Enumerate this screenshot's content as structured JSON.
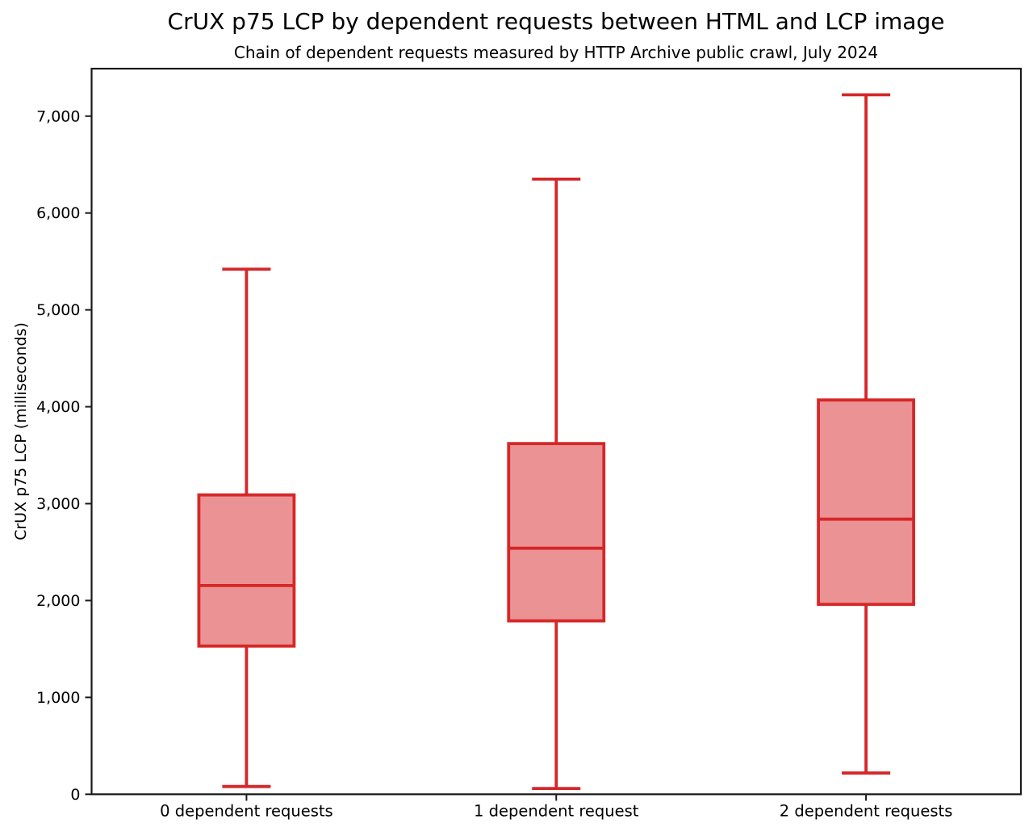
{
  "title": "CrUX p75 LCP by dependent requests between HTML and LCP image",
  "subtitle": "Chain of dependent requests measured by HTTP Archive public crawl, July 2024",
  "chart_data": {
    "type": "boxplot",
    "title": "CrUX p75 LCP by dependent requests between HTML and LCP image",
    "subtitle": "Chain of dependent requests measured by HTTP Archive public crawl, July 2024",
    "xlabel": "",
    "ylabel": "CrUX p75 LCP (milliseconds)",
    "categories": [
      "0 dependent requests",
      "1 dependent request",
      "2 dependent requests"
    ],
    "series": [
      {
        "name": "0 dependent requests",
        "whisker_low": 80,
        "q1": 1530,
        "median": 2155,
        "q3": 3090,
        "whisker_high": 5420
      },
      {
        "name": "1 dependent request",
        "whisker_low": 60,
        "q1": 1790,
        "median": 2540,
        "q3": 3620,
        "whisker_high": 6350
      },
      {
        "name": "2 dependent requests",
        "whisker_low": 220,
        "q1": 1960,
        "median": 2840,
        "q3": 4070,
        "whisker_high": 7220
      }
    ],
    "ylim": [
      0,
      7490
    ],
    "yticks": [
      0,
      1000,
      2000,
      3000,
      4000,
      5000,
      6000,
      7000
    ],
    "ytick_labels": [
      "0",
      "1,000",
      "2,000",
      "3,000",
      "4,000",
      "5,000",
      "6,000",
      "7,000"
    ],
    "grid": false,
    "legend": "none",
    "colors": {
      "box_edge": "#d62728",
      "box_fill": "#eb9394",
      "spine": "#1a1a1a",
      "text": "#000000",
      "background": "#ffffff"
    }
  }
}
